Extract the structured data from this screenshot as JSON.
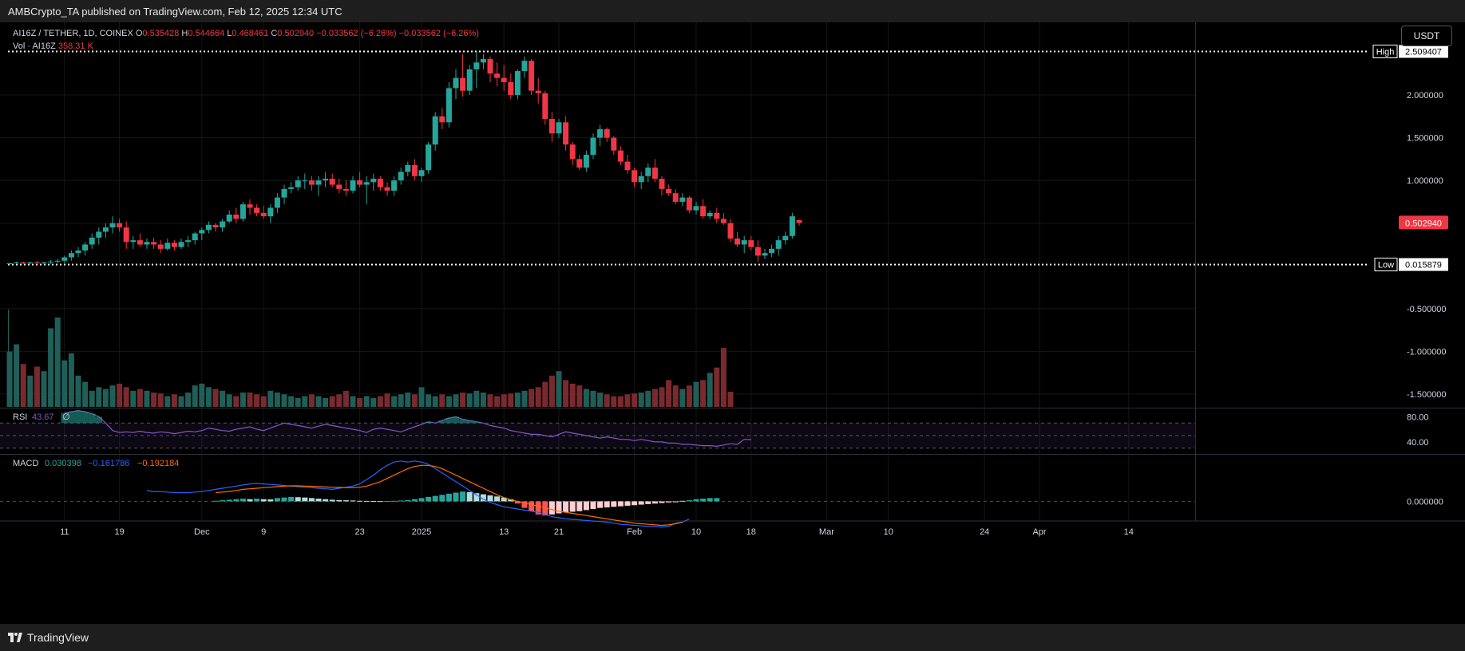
{
  "header": {
    "published": "AMBCrypto_TA published on TradingView.com, Feb 12, 2025 12:34 UTC"
  },
  "legend": {
    "symbol": "AI16Z / TETHER, 1D, COINEX",
    "o_label": "O",
    "o": "0.535428",
    "h_label": "H",
    "h": "0.544664",
    "l_label": "L",
    "l": "0.468461",
    "c_label": "C",
    "c": "0.502940",
    "change": "−0.033562 (−6.26%)",
    "change2": "−0.033562 (−6.26%)",
    "vol_label": "Vol · AI16Z",
    "vol_value": "358.31 K"
  },
  "currency_button": "USDT",
  "footer": {
    "brand": "TradingView"
  },
  "markers": {
    "high_label": "High",
    "high_value": "2.509407",
    "low_label": "Low",
    "low_value": "0.015879",
    "last_price": "0.502940"
  },
  "chart_data": {
    "type": "candlestick",
    "title": "AI16Z / TETHER, 1D, COINEX",
    "price_axis_ticks": [
      "2.000000",
      "1.500000",
      "1.000000",
      "-0.500000",
      "-1.000000",
      "-1.500000"
    ],
    "price_axis_values": [
      2.0,
      1.5,
      1.0,
      -0.5,
      -1.0,
      -1.5
    ],
    "price_range": [
      -1.65,
      2.85
    ],
    "x_axis_ticks": [
      {
        "label": "11",
        "index": 8
      },
      {
        "label": "19",
        "index": 16
      },
      {
        "label": "Dec",
        "index": 28
      },
      {
        "label": "9",
        "index": 37
      },
      {
        "label": "23",
        "index": 51
      },
      {
        "label": "2025",
        "index": 60
      },
      {
        "label": "13",
        "index": 72
      },
      {
        "label": "21",
        "index": 80
      },
      {
        "label": "Feb",
        "index": 91
      },
      {
        "label": "10",
        "index": 100
      },
      {
        "label": "18",
        "index": 108
      },
      {
        "label": "Mar",
        "index": 119
      },
      {
        "label": "10",
        "index": 128
      },
      {
        "label": "24",
        "index": 142
      },
      {
        "label": "Apr",
        "index": 150
      },
      {
        "label": "14",
        "index": 163
      }
    ],
    "x_range": [
      0,
      166
    ],
    "candles": [
      [
        0.02,
        0.04,
        0.01,
        0.03
      ],
      [
        0.03,
        0.05,
        0.02,
        0.04
      ],
      [
        0.04,
        0.05,
        0.02,
        0.03
      ],
      [
        0.03,
        0.05,
        0.02,
        0.04
      ],
      [
        0.04,
        0.06,
        0.02,
        0.03
      ],
      [
        0.03,
        0.05,
        0.02,
        0.04
      ],
      [
        0.04,
        0.07,
        0.02,
        0.05
      ],
      [
        0.05,
        0.08,
        0.03,
        0.06
      ],
      [
        0.06,
        0.12,
        0.03,
        0.1
      ],
      [
        0.1,
        0.18,
        0.06,
        0.15
      ],
      [
        0.15,
        0.22,
        0.1,
        0.18
      ],
      [
        0.18,
        0.28,
        0.12,
        0.25
      ],
      [
        0.25,
        0.38,
        0.2,
        0.33
      ],
      [
        0.33,
        0.45,
        0.25,
        0.4
      ],
      [
        0.4,
        0.5,
        0.33,
        0.45
      ],
      [
        0.45,
        0.58,
        0.38,
        0.5
      ],
      [
        0.5,
        0.55,
        0.4,
        0.45
      ],
      [
        0.45,
        0.52,
        0.2,
        0.28
      ],
      [
        0.28,
        0.35,
        0.2,
        0.3
      ],
      [
        0.3,
        0.38,
        0.22,
        0.25
      ],
      [
        0.25,
        0.32,
        0.2,
        0.28
      ],
      [
        0.28,
        0.33,
        0.2,
        0.25
      ],
      [
        0.25,
        0.3,
        0.15,
        0.2
      ],
      [
        0.2,
        0.32,
        0.18,
        0.27
      ],
      [
        0.27,
        0.3,
        0.18,
        0.22
      ],
      [
        0.22,
        0.32,
        0.2,
        0.28
      ],
      [
        0.28,
        0.35,
        0.22,
        0.3
      ],
      [
        0.3,
        0.4,
        0.25,
        0.38
      ],
      [
        0.38,
        0.45,
        0.3,
        0.42
      ],
      [
        0.42,
        0.52,
        0.38,
        0.48
      ],
      [
        0.48,
        0.5,
        0.4,
        0.45
      ],
      [
        0.45,
        0.55,
        0.4,
        0.52
      ],
      [
        0.52,
        0.65,
        0.5,
        0.6
      ],
      [
        0.6,
        0.68,
        0.5,
        0.55
      ],
      [
        0.55,
        0.75,
        0.52,
        0.72
      ],
      [
        0.72,
        0.78,
        0.6,
        0.68
      ],
      [
        0.68,
        0.72,
        0.58,
        0.62
      ],
      [
        0.62,
        0.7,
        0.55,
        0.58
      ],
      [
        0.58,
        0.72,
        0.5,
        0.68
      ],
      [
        0.68,
        0.85,
        0.62,
        0.8
      ],
      [
        0.8,
        0.95,
        0.72,
        0.9
      ],
      [
        0.9,
        0.98,
        0.85,
        0.92
      ],
      [
        0.92,
        1.05,
        0.88,
        1.0
      ],
      [
        1.0,
        1.08,
        0.9,
        1.0
      ],
      [
        1.0,
        1.05,
        0.88,
        0.95
      ],
      [
        0.95,
        1.05,
        0.82,
        1.0
      ],
      [
        1.0,
        1.1,
        0.92,
        1.02
      ],
      [
        1.02,
        1.08,
        0.92,
        0.95
      ],
      [
        0.95,
        1.02,
        0.85,
        0.9
      ],
      [
        0.9,
        1.0,
        0.82,
        0.88
      ],
      [
        0.88,
        1.05,
        0.85,
        1.0
      ],
      [
        1.0,
        1.1,
        0.92,
        0.95
      ],
      [
        0.95,
        1.05,
        0.72,
        0.98
      ],
      [
        0.98,
        1.08,
        0.88,
        1.02
      ],
      [
        1.02,
        1.05,
        0.88,
        0.92
      ],
      [
        0.92,
        0.98,
        0.82,
        0.88
      ],
      [
        0.88,
        1.05,
        0.82,
        1.0
      ],
      [
        1.0,
        1.15,
        0.95,
        1.1
      ],
      [
        1.1,
        1.22,
        1.05,
        1.18
      ],
      [
        1.18,
        1.25,
        1.0,
        1.05
      ],
      [
        1.05,
        1.15,
        0.98,
        1.12
      ],
      [
        1.12,
        1.45,
        1.08,
        1.42
      ],
      [
        1.42,
        1.8,
        1.35,
        1.75
      ],
      [
        1.75,
        1.85,
        1.6,
        1.68
      ],
      [
        1.68,
        2.15,
        1.62,
        2.08
      ],
      [
        2.08,
        2.3,
        1.95,
        2.2
      ],
      [
        2.2,
        2.48,
        1.98,
        2.05
      ],
      [
        2.05,
        2.35,
        2.0,
        2.3
      ],
      [
        2.3,
        2.51,
        2.08,
        2.38
      ],
      [
        2.38,
        2.48,
        2.3,
        2.42
      ],
      [
        2.42,
        2.45,
        2.15,
        2.25
      ],
      [
        2.25,
        2.38,
        2.1,
        2.2
      ],
      [
        2.2,
        2.35,
        2.05,
        2.15
      ],
      [
        2.15,
        2.25,
        1.95,
        2.0
      ],
      [
        2.0,
        2.3,
        1.95,
        2.28
      ],
      [
        2.28,
        2.45,
        2.2,
        2.4
      ],
      [
        2.4,
        2.42,
        2.0,
        2.05
      ],
      [
        2.05,
        2.2,
        1.9,
        2.02
      ],
      [
        2.02,
        2.05,
        1.65,
        1.72
      ],
      [
        1.72,
        1.8,
        1.45,
        1.55
      ],
      [
        1.55,
        1.72,
        1.5,
        1.68
      ],
      [
        1.68,
        1.75,
        1.35,
        1.42
      ],
      [
        1.42,
        1.45,
        1.18,
        1.25
      ],
      [
        1.25,
        1.3,
        1.12,
        1.15
      ],
      [
        1.15,
        1.35,
        1.1,
        1.3
      ],
      [
        1.3,
        1.55,
        1.25,
        1.5
      ],
      [
        1.5,
        1.65,
        1.4,
        1.6
      ],
      [
        1.6,
        1.62,
        1.45,
        1.5
      ],
      [
        1.5,
        1.52,
        1.3,
        1.35
      ],
      [
        1.35,
        1.4,
        1.18,
        1.22
      ],
      [
        1.22,
        1.3,
        1.08,
        1.12
      ],
      [
        1.12,
        1.15,
        0.92,
        0.98
      ],
      [
        0.98,
        1.1,
        0.9,
        1.05
      ],
      [
        1.05,
        1.2,
        0.98,
        1.15
      ],
      [
        1.15,
        1.25,
        0.98,
        1.02
      ],
      [
        1.02,
        1.05,
        0.82,
        0.9
      ],
      [
        0.9,
        0.95,
        0.82,
        0.85
      ],
      [
        0.85,
        0.9,
        0.72,
        0.75
      ],
      [
        0.75,
        0.85,
        0.7,
        0.8
      ],
      [
        0.8,
        0.82,
        0.62,
        0.65
      ],
      [
        0.65,
        0.75,
        0.6,
        0.7
      ],
      [
        0.7,
        0.78,
        0.55,
        0.58
      ],
      [
        0.58,
        0.65,
        0.55,
        0.62
      ],
      [
        0.62,
        0.68,
        0.5,
        0.55
      ],
      [
        0.55,
        0.62,
        0.48,
        0.5
      ],
      [
        0.5,
        0.55,
        0.28,
        0.32
      ],
      [
        0.32,
        0.4,
        0.22,
        0.25
      ],
      [
        0.25,
        0.35,
        0.15,
        0.3
      ],
      [
        0.3,
        0.35,
        0.18,
        0.22
      ],
      [
        0.22,
        0.3,
        0.05,
        0.12
      ],
      [
        0.12,
        0.2,
        0.08,
        0.15
      ],
      [
        0.15,
        0.25,
        0.1,
        0.2
      ],
      [
        0.2,
        0.35,
        0.12,
        0.3
      ],
      [
        0.3,
        0.4,
        0.25,
        0.35
      ],
      [
        0.35,
        0.62,
        0.32,
        0.58
      ],
      [
        0.535428,
        0.544664,
        0.468461,
        0.50294
      ]
    ],
    "volume": {
      "label": "Vol · AI16Z",
      "last": "358.31 K",
      "values": [
        0.62,
        0.7,
        0.48,
        0.35,
        0.45,
        0.4,
        0.88,
        1.0,
        0.52,
        0.6,
        0.35,
        0.28,
        0.18,
        0.22,
        0.2,
        0.24,
        0.26,
        0.22,
        0.18,
        0.2,
        0.18,
        0.16,
        0.15,
        0.12,
        0.14,
        0.12,
        0.16,
        0.24,
        0.26,
        0.22,
        0.2,
        0.18,
        0.14,
        0.12,
        0.16,
        0.16,
        0.14,
        0.12,
        0.18,
        0.16,
        0.14,
        0.12,
        0.1,
        0.12,
        0.14,
        0.12,
        0.1,
        0.12,
        0.14,
        0.18,
        0.12,
        0.1,
        0.12,
        0.1,
        0.12,
        0.15,
        0.12,
        0.14,
        0.16,
        0.14,
        0.22,
        0.14,
        0.12,
        0.14,
        0.12,
        0.14,
        0.16,
        0.15,
        0.18,
        0.16,
        0.14,
        0.12,
        0.14,
        0.15,
        0.16,
        0.18,
        0.2,
        0.22,
        0.28,
        0.35,
        0.4,
        0.3,
        0.26,
        0.24,
        0.2,
        0.18,
        0.16,
        0.14,
        0.12,
        0.12,
        0.14,
        0.15,
        0.16,
        0.18,
        0.2,
        0.22,
        0.3,
        0.24,
        0.2,
        0.24,
        0.28,
        0.3,
        0.38,
        0.44,
        0.66,
        0.17
      ],
      "start_index": 0
    },
    "rsi": {
      "label": "RSI",
      "value": "43.67",
      "symbol": "∅",
      "ticks": [
        "80.00",
        "40.00"
      ],
      "upper": 70,
      "lower": 30,
      "mid": 50,
      "range": [
        22,
        92
      ],
      "start_index": 8,
      "values": [
        86,
        88,
        90,
        88,
        85,
        80,
        70,
        58,
        55,
        56,
        55,
        57,
        55,
        54,
        56,
        55,
        53,
        55,
        57,
        56,
        58,
        62,
        60,
        58,
        57,
        60,
        62,
        64,
        60,
        58,
        62,
        66,
        70,
        68,
        66,
        64,
        62,
        65,
        68,
        66,
        64,
        62,
        60,
        58,
        55,
        60,
        62,
        60,
        58,
        56,
        60,
        64,
        68,
        72,
        70,
        74,
        78,
        80,
        76,
        74,
        72,
        70,
        66,
        64,
        62,
        58,
        56,
        54,
        52,
        52,
        50,
        48,
        52,
        56,
        54,
        52,
        50,
        48,
        46,
        48,
        46,
        44,
        44,
        42,
        44,
        42,
        40,
        40,
        38,
        38,
        36,
        36,
        35,
        34,
        34,
        33,
        35,
        37,
        36,
        44,
        43.67
      ]
    },
    "macd": {
      "label": "MACD",
      "histogram_value": "0.030398",
      "macd_value": "−0.161786",
      "signal_value": "−0.192184",
      "ticks": [
        "0.000000"
      ],
      "range": [
        -0.26,
        0.42
      ],
      "macd_start": 20,
      "macd_line": [
        0.1,
        0.09,
        0.09,
        0.085,
        0.08,
        0.08,
        0.08,
        0.085,
        0.09,
        0.1,
        0.11,
        0.12,
        0.13,
        0.14,
        0.15,
        0.16,
        0.165,
        0.16,
        0.155,
        0.15,
        0.145,
        0.14,
        0.135,
        0.13,
        0.125,
        0.12,
        0.115,
        0.11,
        0.12,
        0.13,
        0.14,
        0.16,
        0.2,
        0.24,
        0.29,
        0.33,
        0.36,
        0.37,
        0.36,
        0.37,
        0.36,
        0.34,
        0.3,
        0.26,
        0.22,
        0.18,
        0.14,
        0.1,
        0.06,
        0.02,
        -0.01,
        -0.03,
        -0.05,
        -0.06,
        -0.07,
        -0.08,
        -0.09,
        -0.1,
        -0.12,
        -0.14,
        -0.15,
        -0.16,
        -0.165,
        -0.17,
        -0.175,
        -0.18,
        -0.185,
        -0.19,
        -0.2,
        -0.21,
        -0.215,
        -0.22,
        -0.225,
        -0.23,
        -0.23,
        -0.235,
        -0.23,
        -0.2,
        -0.19,
        -0.162
      ],
      "signal_start": 30,
      "signal_line": [
        0.08,
        0.085,
        0.09,
        0.1,
        0.11,
        0.115,
        0.12,
        0.125,
        0.13,
        0.135,
        0.14,
        0.142,
        0.142,
        0.14,
        0.138,
        0.135,
        0.132,
        0.13,
        0.128,
        0.126,
        0.125,
        0.13,
        0.14,
        0.16,
        0.18,
        0.21,
        0.24,
        0.27,
        0.3,
        0.32,
        0.33,
        0.33,
        0.32,
        0.3,
        0.27,
        0.24,
        0.21,
        0.18,
        0.15,
        0.12,
        0.09,
        0.06,
        0.035,
        0.015,
        0,
        -0.015,
        -0.03,
        -0.045,
        -0.06,
        -0.075,
        -0.09,
        -0.1,
        -0.11,
        -0.12,
        -0.13,
        -0.14,
        -0.15,
        -0.16,
        -0.17,
        -0.18,
        -0.19,
        -0.2,
        -0.205,
        -0.21,
        -0.215,
        -0.22,
        -0.215,
        -0.205,
        -0.192
      ],
      "hist_start": 30,
      "histogram": [
        0.005,
        0.01,
        0.015,
        0.02,
        0.025,
        0.02,
        0.025,
        0.02,
        0.018,
        0.03,
        0.035,
        0.04,
        0.038,
        0.035,
        0.03,
        0.025,
        0.02,
        0.015,
        0.012,
        0.01,
        0.008,
        0.005,
        0.004,
        0.003,
        0.002,
        0.003,
        0.005,
        0.008,
        0.012,
        0.02,
        0.03,
        0.04,
        0.05,
        0.06,
        0.07,
        0.08,
        0.09,
        0.085,
        0.075,
        0.065,
        0.055,
        0.045,
        0.035,
        0.02,
        -0.02,
        -0.06,
        -0.09,
        -0.12,
        -0.13,
        -0.12,
        -0.11,
        -0.1,
        -0.095,
        -0.09,
        -0.08,
        -0.07,
        -0.06,
        -0.055,
        -0.05,
        -0.045,
        -0.04,
        -0.035,
        -0.03,
        -0.025,
        -0.02,
        -0.015,
        -0.01,
        -0.008,
        0.005,
        0.01,
        0.02,
        0.025,
        0.03,
        0.03
      ]
    }
  },
  "colors": {
    "up": "#26a69a",
    "down": "#f23645",
    "vol_up": "#1f5f58",
    "vol_down": "#7a2a2e",
    "rsi": "#7e57c2",
    "macd": "#2962ff",
    "signal": "#ff6d00",
    "hist_up_strong": "#26a69a",
    "hist_up_weak": "#b2dfdb",
    "hist_down_strong": "#ff5252",
    "hist_down_weak": "#ffcdd2"
  }
}
